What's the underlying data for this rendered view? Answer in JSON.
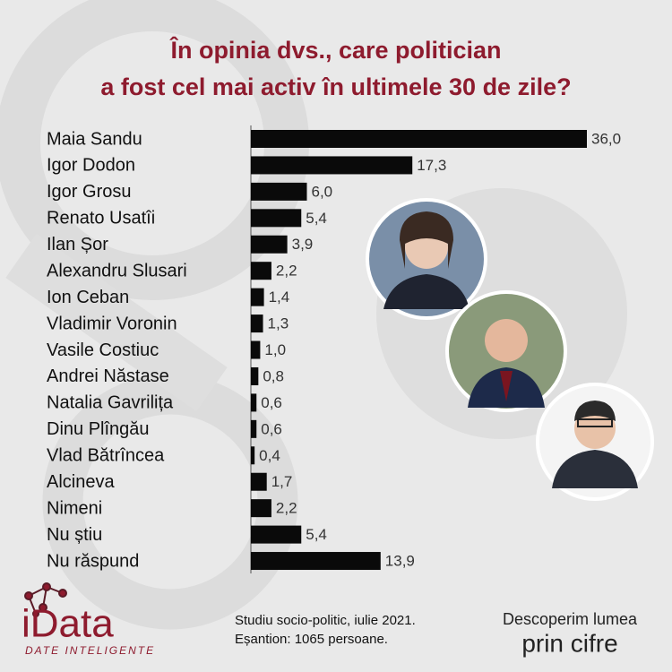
{
  "chart_data": {
    "type": "bar",
    "orientation": "horizontal",
    "title": [
      "În opinia dvs., care politician",
      "a fost cel mai activ în ultimele 30 de zile?"
    ],
    "categories": [
      "Maia Sandu",
      "Igor Dodon",
      "Igor Grosu",
      "Renato Usatîi",
      "Ilan Șor",
      "Alexandru Slusari",
      "Ion Ceban",
      "Vladimir Voronin",
      "Vasile Costiuc",
      "Andrei Năstase",
      "Natalia Gavrilița",
      "Dinu Plîngău",
      "Vlad Bătrîncea",
      "Alcineva",
      "Nimeni",
      "Nu știu",
      "Nu răspund"
    ],
    "values": [
      36.0,
      17.3,
      6.0,
      5.4,
      3.9,
      2.2,
      1.4,
      1.3,
      1.0,
      0.8,
      0.6,
      0.6,
      0.4,
      1.7,
      2.2,
      5.4,
      13.9
    ],
    "value_labels": [
      "36,0",
      "17,3",
      "6,0",
      "5,4",
      "3,9",
      "2,2",
      "1,4",
      "1,3",
      "1,0",
      "0,8",
      "0,6",
      "0,6",
      "0,4",
      "1,7",
      "2,2",
      "5,4",
      "13,9"
    ],
    "color": "#0a0a0a",
    "title_color": "#8e1b2e"
  },
  "footer": {
    "brand": "iData",
    "brand_tagline": "DATE INTELIGENTE",
    "source": "Studiu socio-politic, iulie 2021.",
    "sample": "Eșantion: 1065 persoane.",
    "slogan_top": "Descoperim lumea",
    "slogan_bottom": "prin cifre"
  }
}
